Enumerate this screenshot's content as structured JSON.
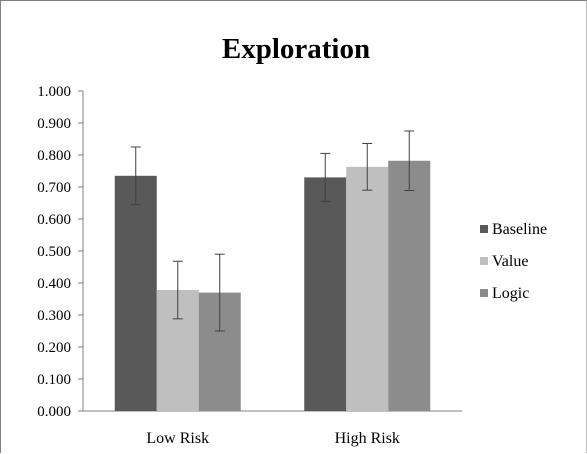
{
  "chart_data": {
    "type": "bar",
    "title": "Exploration",
    "xlabel": "",
    "ylabel": "",
    "ylim": [
      0,
      1
    ],
    "yticks": [
      "0.000",
      "0.100",
      "0.200",
      "0.300",
      "0.400",
      "0.500",
      "0.600",
      "0.700",
      "0.800",
      "0.900",
      "1.000"
    ],
    "categories": [
      "Low Risk",
      "High Risk"
    ],
    "series": [
      {
        "name": "Baseline",
        "color": "#595959",
        "values": [
          0.735,
          0.73
        ],
        "errors": [
          0.09,
          0.075
        ]
      },
      {
        "name": "Value",
        "color": "#bfbfbf",
        "values": [
          0.378,
          0.763
        ],
        "errors": [
          0.09,
          0.073
        ]
      },
      {
        "name": "Logic",
        "color": "#8c8c8c",
        "values": [
          0.37,
          0.782
        ],
        "errors": [
          0.12,
          0.093
        ]
      }
    ],
    "grid": false,
    "legend_position": "right"
  }
}
